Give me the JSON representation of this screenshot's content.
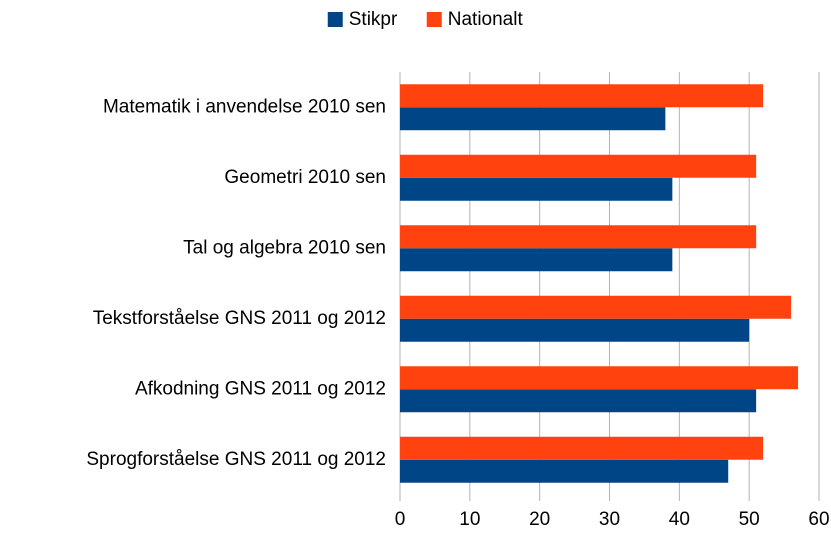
{
  "chart_data": {
    "type": "hbar",
    "categories": [
      "Matematik i anvendelse 2010 sen",
      "Geometri 2010 sen",
      "Tal og algebra 2010 sen",
      "Tekstforståelse GNS 2011 og 2012",
      "Afkodning GNS 2011 og 2012",
      "Sprogforståelse GNS 2011 og 2012"
    ],
    "series": [
      {
        "name": "Stikpr",
        "color": "#004586",
        "values": [
          38,
          39,
          39,
          50,
          51,
          47
        ]
      },
      {
        "name": "Nationalt",
        "color": "#ff420e",
        "values": [
          52,
          51,
          51,
          56,
          57,
          52
        ]
      }
    ],
    "xlim": [
      0,
      60
    ],
    "xticks": [
      0,
      10,
      20,
      30,
      40,
      50,
      60
    ],
    "grid": true,
    "legend": "top"
  }
}
